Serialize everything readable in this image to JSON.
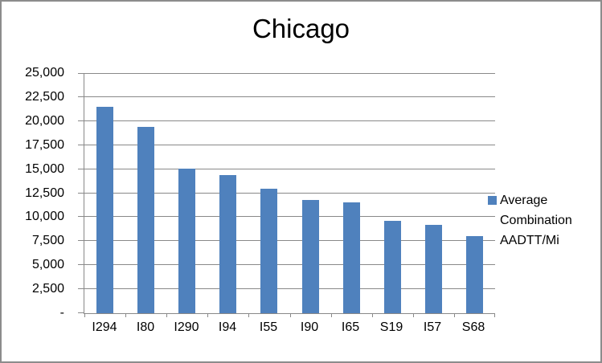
{
  "title": "Chicago",
  "legend": {
    "label": "Average Combination AADTT/Mi"
  },
  "colors": {
    "bar": "#4f81bd",
    "gridline": "#898989",
    "axis": "#898989",
    "border": "#8c8c8c",
    "background": "#ffffff",
    "text": "#000000"
  },
  "chart_data": {
    "type": "bar",
    "title": "Chicago",
    "categories": [
      "I294",
      "I80",
      "I290",
      "I94",
      "I55",
      "I90",
      "I65",
      "S19",
      "I57",
      "S68"
    ],
    "values": [
      21500,
      19400,
      15050,
      14400,
      13000,
      11800,
      11500,
      9600,
      9200,
      8000
    ],
    "series": [
      {
        "name": "Average Combination AADTT/Mi",
        "values": [
          21500,
          19400,
          15050,
          14400,
          13000,
          11800,
          11500,
          9600,
          9200,
          8000
        ]
      }
    ],
    "xlabel": "",
    "ylabel": "",
    "ylim": [
      0,
      25000
    ],
    "ytick_interval": 2500,
    "ytick_labels": [
      "-",
      "2,500",
      "5,000",
      "7,500",
      "10,000",
      "12,500",
      "15,000",
      "17,500",
      "20,000",
      "22,500",
      "25,000"
    ],
    "grid": true,
    "legend_position": "right"
  }
}
